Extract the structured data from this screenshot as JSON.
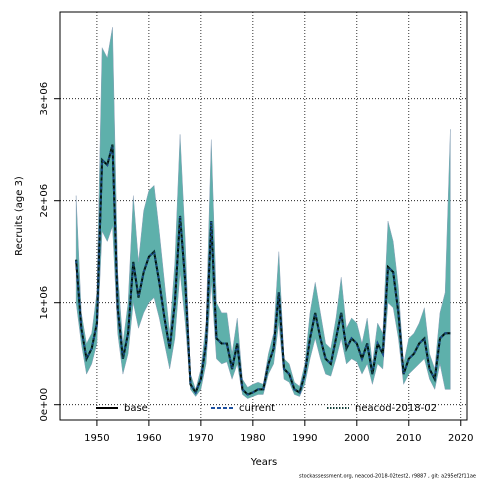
{
  "chart_data": {
    "type": "line",
    "xlabel": "Years",
    "ylabel": "Recruits (age 3)",
    "footnote": "stockassessment.org, neacod-2018-02test2, r9887 , git: a295ef2f11ae",
    "xlim": [
      1942.9,
      2021.2
    ],
    "xticks": [
      1950,
      1960,
      1970,
      1980,
      1990,
      2000,
      2010,
      2020
    ],
    "ylim": [
      -150000,
      3850000
    ],
    "yticks": [
      {
        "value": 0,
        "label": "0e+00"
      },
      {
        "value": 1000000,
        "label": "1e+06"
      },
      {
        "value": 2000000,
        "label": "2e+06"
      },
      {
        "value": 3000000,
        "label": "3e+06"
      }
    ],
    "grid": true,
    "x": [
      1946,
      1947,
      1948,
      1949,
      1950,
      1951,
      1952,
      1953,
      1954,
      1955,
      1956,
      1957,
      1958,
      1959,
      1960,
      1961,
      1962,
      1963,
      1964,
      1965,
      1966,
      1967,
      1968,
      1969,
      1970,
      1971,
      1972,
      1973,
      1974,
      1975,
      1976,
      1977,
      1978,
      1979,
      1980,
      1981,
      1982,
      1983,
      1984,
      1985,
      1986,
      1987,
      1988,
      1989,
      1990,
      1991,
      1992,
      1993,
      1994,
      1995,
      1996,
      1997,
      1998,
      1999,
      2000,
      2001,
      2002,
      2003,
      2004,
      2005,
      2006,
      2007,
      2008,
      2009,
      2010,
      2011,
      2012,
      2013,
      2014,
      2015,
      2016,
      2017,
      2018
    ],
    "band": {
      "color": "#5eb0ab",
      "upper": [
        2050000.0,
        900000.0,
        600000.0,
        700000.0,
        1100000.0,
        3500000.0,
        3400000.0,
        3700000.0,
        1300000.0,
        600000.0,
        1000000.0,
        2050000.0,
        1400000.0,
        1900000.0,
        2100000.0,
        2150000.0,
        1700000.0,
        1200000.0,
        700000.0,
        1400000.0,
        2650000.0,
        1600000.0,
        300000.0,
        150000.0,
        350000.0,
        800000.0,
        2600000.0,
        1000000.0,
        900000.0,
        900000.0,
        500000.0,
        850000.0,
        250000.0,
        170000.0,
        200000.0,
        220000.0,
        200000.0,
        500000.0,
        700000.0,
        1500000.0,
        450000.0,
        400000.0,
        220000.0,
        180000.0,
        400000.0,
        900000.0,
        1200000.0,
        900000.0,
        600000.0,
        550000.0,
        850000.0,
        1250000.0,
        750000.0,
        850000.0,
        800000.0,
        600000.0,
        850000.0,
        400000.0,
        800000.0,
        700000.0,
        1800000.0,
        1600000.0,
        1150000.0,
        400000.0,
        650000.0,
        700000.0,
        800000.0,
        950000.0,
        500000.0,
        350000.0,
        900000.0,
        1100000.0,
        2700000.0
      ],
      "lower": [
        1000000.0,
        600000.0,
        300000.0,
        400000.0,
        600000.0,
        1700000.0,
        1600000.0,
        1750000.0,
        700000.0,
        300000.0,
        500000.0,
        1000000.0,
        750000.0,
        900000.0,
        1000000.0,
        1050000.0,
        850000.0,
        600000.0,
        350000.0,
        650000.0,
        1300000.0,
        800000.0,
        150000.0,
        80000.0,
        150000.0,
        400000.0,
        1200000.0,
        450000.0,
        400000.0,
        420000.0,
        250000.0,
        400000.0,
        100000.0,
        60000.0,
        80000.0,
        100000.0,
        100000.0,
        300000.0,
        400000.0,
        800000.0,
        250000.0,
        220000.0,
        100000.0,
        80000.0,
        200000.0,
        450000.0,
        650000.0,
        450000.0,
        300000.0,
        280000.0,
        450000.0,
        650000.0,
        400000.0,
        450000.0,
        420000.0,
        300000.0,
        400000.0,
        200000.0,
        400000.0,
        350000.0,
        1000000.0,
        950000.0,
        650000.0,
        200000.0,
        300000.0,
        350000.0,
        400000.0,
        450000.0,
        250000.0,
        150000.0,
        400000.0,
        150000.0,
        150000.0
      ]
    },
    "series": [
      {
        "name": "base",
        "color": "#000000",
        "dash": "none",
        "values": [
          1420000.0,
          750000.0,
          450000.0,
          550000.0,
          800000.0,
          2400000.0,
          2350000.0,
          2550000.0,
          950000.0,
          450000.0,
          700000.0,
          1400000.0,
          1050000.0,
          1300000.0,
          1450000.0,
          1500000.0,
          1200000.0,
          850000.0,
          550000.0,
          1000000.0,
          1850000.0,
          1200000.0,
          200000.0,
          120000.0,
          250000.0,
          600000.0,
          1800000.0,
          650000.0,
          600000.0,
          600000.0,
          350000.0,
          600000.0,
          150000.0,
          100000.0,
          120000.0,
          150000.0,
          150000.0,
          400000.0,
          550000.0,
          1100000.0,
          350000.0,
          300000.0,
          150000.0,
          120000.0,
          300000.0,
          650000.0,
          900000.0,
          650000.0,
          450000.0,
          400000.0,
          650000.0,
          900000.0,
          550000.0,
          650000.0,
          600000.0,
          450000.0,
          600000.0,
          300000.0,
          600000.0,
          500000.0,
          1350000.0,
          1300000.0,
          900000.0,
          300000.0,
          450000.0,
          500000.0,
          600000.0,
          650000.0,
          350000.0,
          250000.0,
          650000.0,
          700000.0,
          700000.0
        ]
      },
      {
        "name": "current",
        "color": "#1c4fa0",
        "dash": "4 2",
        "values": [
          1420000.0,
          750000.0,
          450000.0,
          550000.0,
          800000.0,
          2400000.0,
          2350000.0,
          2550000.0,
          950000.0,
          450000.0,
          700000.0,
          1400000.0,
          1050000.0,
          1300000.0,
          1450000.0,
          1500000.0,
          1200000.0,
          850000.0,
          550000.0,
          1000000.0,
          1850000.0,
          1200000.0,
          200000.0,
          120000.0,
          250000.0,
          600000.0,
          1800000.0,
          650000.0,
          600000.0,
          600000.0,
          350000.0,
          600000.0,
          150000.0,
          100000.0,
          120000.0,
          150000.0,
          150000.0,
          400000.0,
          550000.0,
          1100000.0,
          350000.0,
          300000.0,
          150000.0,
          120000.0,
          300000.0,
          650000.0,
          900000.0,
          650000.0,
          450000.0,
          400000.0,
          650000.0,
          900000.0,
          550000.0,
          650000.0,
          600000.0,
          450000.0,
          600000.0,
          300000.0,
          600000.0,
          500000.0,
          1350000.0,
          1300000.0,
          900000.0,
          300000.0,
          450000.0,
          500000.0,
          600000.0,
          650000.0,
          350000.0,
          250000.0,
          650000.0,
          700000.0,
          700000.0
        ]
      },
      {
        "name": "neacod-2018-02",
        "color": "#0e3b35",
        "dash": "1.5 1.5",
        "values": [
          1420000.0,
          750000.0,
          450000.0,
          550000.0,
          800000.0,
          2400000.0,
          2350000.0,
          2550000.0,
          950000.0,
          450000.0,
          700000.0,
          1400000.0,
          1050000.0,
          1300000.0,
          1450000.0,
          1500000.0,
          1200000.0,
          850000.0,
          550000.0,
          1000000.0,
          1850000.0,
          1200000.0,
          200000.0,
          120000.0,
          250000.0,
          600000.0,
          1800000.0,
          650000.0,
          600000.0,
          600000.0,
          350000.0,
          600000.0,
          150000.0,
          100000.0,
          120000.0,
          150000.0,
          150000.0,
          400000.0,
          550000.0,
          1100000.0,
          350000.0,
          300000.0,
          150000.0,
          120000.0,
          300000.0,
          650000.0,
          900000.0,
          650000.0,
          450000.0,
          400000.0,
          650000.0,
          900000.0,
          550000.0,
          650000.0,
          600000.0,
          450000.0,
          600000.0,
          300000.0,
          600000.0,
          500000.0,
          1350000.0,
          1300000.0,
          900000.0,
          300000.0,
          450000.0,
          500000.0,
          600000.0,
          650000.0,
          350000.0,
          250000.0,
          650000.0,
          700000.0,
          700000.0
        ]
      }
    ]
  }
}
